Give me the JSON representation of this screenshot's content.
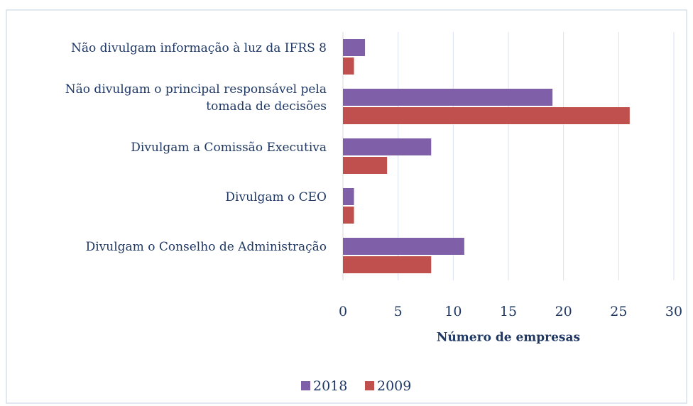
{
  "chart_data": {
    "type": "hbar",
    "categories": [
      [
        "Não divulgam informação à luz da IFRS 8"
      ],
      [
        "Não divulgam o principal responsável pela",
        "tomada de decisões"
      ],
      [
        "Divulgam a Comissão Executiva"
      ],
      [
        "Divulgam o CEO"
      ],
      [
        "Divulgam o Conselho de Administração"
      ]
    ],
    "series": [
      {
        "name": "2018",
        "color": "#7e5fa8",
        "values": [
          2,
          19,
          8,
          1,
          11
        ]
      },
      {
        "name": "2009",
        "color": "#c0504d",
        "values": [
          1,
          26,
          4,
          1,
          8
        ]
      }
    ],
    "xlabel": "Número de empresas",
    "xlim": [
      0,
      30
    ],
    "xticks": [
      0,
      5,
      10,
      15,
      20,
      25,
      30
    ],
    "grid": true,
    "legend": "bottom"
  }
}
